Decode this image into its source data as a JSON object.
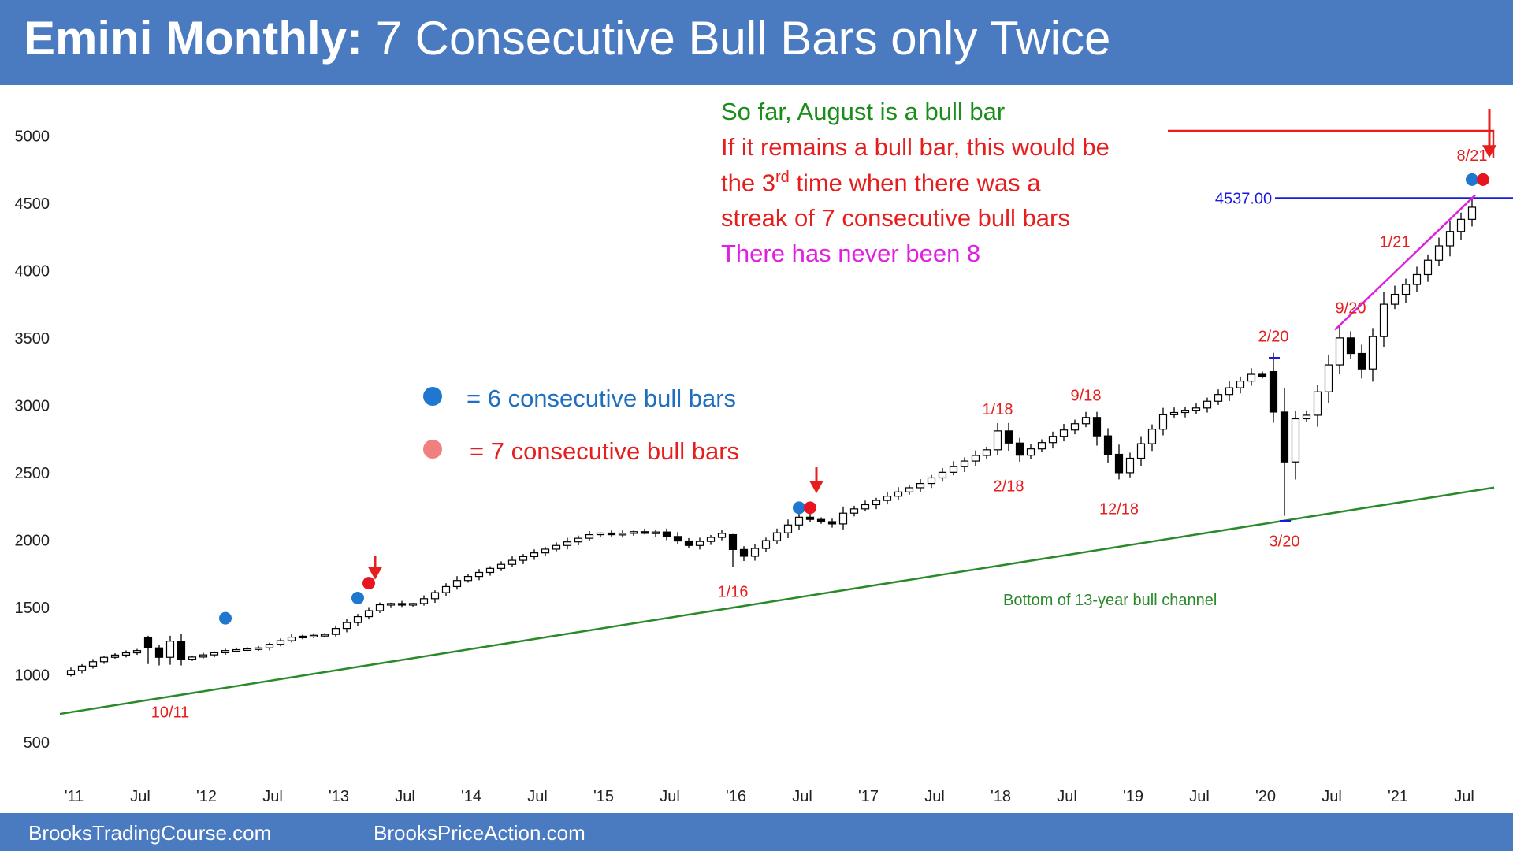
{
  "header": {
    "title_bold": "Emini Monthly:",
    "title_rest": "7 Consecutive Bull Bars only Twice",
    "background": "#4a7ac0"
  },
  "footer": {
    "left": "BrooksTradingCourse.com",
    "right": "BrooksPriceAction.com"
  },
  "notes": {
    "line1": "So far, August is a bull bar",
    "line2": "If it remains a bull bar, this would be",
    "line3_pre": "the 3",
    "line3_sup": "rd",
    "line3_post": " time when there was a",
    "line4": "streak of 7 consecutive bull bars",
    "line5": "There has never been 8"
  },
  "legend": {
    "blue_label": "= 6 consecutive bull bars",
    "red_label": "= 7 consecutive bull bars",
    "blue_color": "#1f77d0",
    "red_color": "#f08080"
  },
  "chart_data": {
    "type": "candlestick",
    "title": "Emini Monthly: 7 Consecutive Bull Bars only Twice",
    "ylim": [
      500,
      5400
    ],
    "y_ticks": [
      500,
      1000,
      1500,
      2000,
      2500,
      3000,
      3500,
      4000,
      4500,
      5000
    ],
    "x_ticks": [
      "'11",
      "Jul",
      "'12",
      "Jul",
      "'13",
      "Jul",
      "'14",
      "Jul",
      "'15",
      "Jul",
      "'16",
      "Jul",
      "'17",
      "Jul",
      "'18",
      "Jul",
      "'19",
      "Jul",
      "'20",
      "Jul",
      "'21",
      "Jul"
    ],
    "x_range": [
      "2010-12",
      "2021-09"
    ],
    "colors": {
      "bull_fill": "#ffffff",
      "bear_fill": "#000000",
      "trendline": "#2a8a2a",
      "resistance": "#1a1adc",
      "channel": "#e020e0",
      "annotation": "#e61e1e",
      "green_text": "#1a8c1a",
      "blue_text": "#1f6fc0"
    },
    "anchors": [
      [
        "2010-12",
        1000
      ],
      [
        "2011-04",
        1130
      ],
      [
        "2011-07",
        1180
      ],
      [
        "2011-10",
        1100
      ],
      [
        "2012-03",
        1180
      ],
      [
        "2012-06",
        1200
      ],
      [
        "2012-09",
        1280
      ],
      [
        "2012-12",
        1300
      ],
      [
        "2013-05",
        1520
      ],
      [
        "2013-08",
        1520
      ],
      [
        "2013-12",
        1700
      ],
      [
        "2014-05",
        1850
      ],
      [
        "2014-09",
        1960
      ],
      [
        "2014-12",
        2040
      ],
      [
        "2015-06",
        2060
      ],
      [
        "2015-09",
        1960
      ],
      [
        "2015-12",
        2050
      ],
      [
        "2016-02",
        1880
      ],
      [
        "2016-07",
        2170
      ],
      [
        "2016-10",
        2120
      ],
      [
        "2016-11",
        2200
      ],
      [
        "2017-06",
        2420
      ],
      [
        "2017-12",
        2670
      ],
      [
        "2018-01",
        2810
      ],
      [
        "2018-03",
        2630
      ],
      [
        "2018-09",
        2910
      ],
      [
        "2018-12",
        2500
      ],
      [
        "2019-04",
        2930
      ],
      [
        "2019-07",
        2980
      ],
      [
        "2019-12",
        3230
      ],
      [
        "2020-01",
        3220
      ],
      [
        "2020-03",
        2580
      ],
      [
        "2020-06",
        3100
      ],
      [
        "2020-08",
        3500
      ],
      [
        "2020-10",
        3270
      ],
      [
        "2020-12",
        3750
      ],
      [
        "2021-03",
        3970
      ],
      [
        "2021-06",
        4290
      ],
      [
        "2021-08",
        4470
      ]
    ],
    "special_bars": [
      {
        "month": "2011-08",
        "open": 1280,
        "close": 1200,
        "high": 1290,
        "low": 1080
      },
      {
        "month": "2011-09",
        "open": 1200,
        "close": 1130,
        "high": 1220,
        "low": 1070
      },
      {
        "month": "2011-10",
        "open": 1130,
        "close": 1250,
        "high": 1290,
        "low": 1075
      },
      {
        "month": "2016-01",
        "open": 2040,
        "close": 1930,
        "high": 2045,
        "low": 1800
      },
      {
        "month": "2020-02",
        "open": 3250,
        "close": 2950,
        "high": 3390,
        "low": 2870
      },
      {
        "month": "2020-03",
        "open": 2950,
        "close": 2580,
        "high": 3130,
        "low": 2180
      },
      {
        "month": "2020-04",
        "open": 2580,
        "close": 2900,
        "high": 2960,
        "low": 2450
      }
    ],
    "six_bull_markers": [
      [
        "2012-03",
        1420
      ],
      [
        "2013-03",
        1570
      ],
      [
        "2016-07",
        2240
      ],
      [
        "2021-08",
        4675
      ]
    ],
    "seven_bull_markers": [
      [
        "2013-04",
        1680
      ],
      [
        "2016-08",
        2240
      ],
      [
        "2021-09",
        4675
      ]
    ],
    "down_arrows": [
      {
        "month": "2013-04",
        "from": 1880,
        "to": 1730
      },
      {
        "month": "2016-08",
        "from": 2540,
        "to": 2370
      },
      {
        "month": "2021-09",
        "from": 5200,
        "to": 4860
      }
    ],
    "horizontal_line": {
      "value": 4537,
      "label": "4537.00",
      "from": "2015-03",
      "to": "2021-10"
    },
    "trendline": {
      "from": [
        "2010-12",
        710
      ],
      "to": [
        "2021-10",
        2390
      ],
      "label": "Bottom of 13-year bull channel"
    },
    "channel_line": {
      "from": [
        "2020-07",
        3560
      ],
      "to": [
        "2021-08",
        4560
      ]
    },
    "bar_labels": [
      {
        "text": "10/11",
        "month": "2011-10",
        "value": 730
      },
      {
        "text": "1/16",
        "month": "2016-01",
        "value": 1625
      },
      {
        "text": "1/18",
        "month": "2018-01",
        "value": 2980
      },
      {
        "text": "2/18",
        "month": "2018-02",
        "value": 2410
      },
      {
        "text": "9/18",
        "month": "2018-09",
        "value": 3080
      },
      {
        "text": "12/18",
        "month": "2018-12",
        "value": 2240
      },
      {
        "text": "2/20",
        "month": "2020-02",
        "value": 3520
      },
      {
        "text": "3/20",
        "month": "2020-03",
        "value": 2000
      },
      {
        "text": "9/20",
        "month": "2020-09",
        "value": 3730
      },
      {
        "text": "1/21",
        "month": "2021-01",
        "value": 4220
      },
      {
        "text": "8/21",
        "month": "2021-08",
        "value": 4860
      }
    ]
  }
}
